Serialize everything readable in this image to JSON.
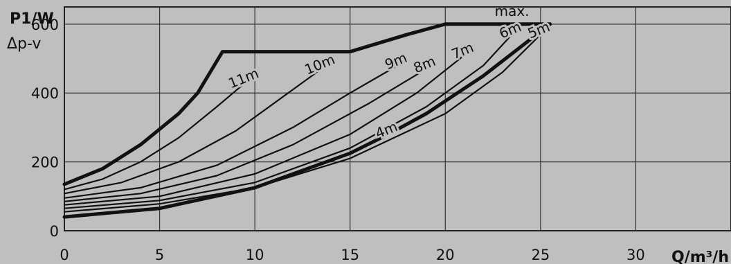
{
  "chart_data": {
    "type": "line",
    "ylabel": "P1/W",
    "ylabel_sub": "Δp-v",
    "xlabel": "Q/m³/h",
    "xlim": [
      0,
      35
    ],
    "ylim": [
      0,
      650
    ],
    "x_ticks": [
      0,
      5,
      10,
      15,
      20,
      25,
      30
    ],
    "y_ticks": [
      0,
      200,
      400,
      600
    ],
    "grid": true,
    "annotations": [
      "max."
    ],
    "series": [
      {
        "name": "max.",
        "bold": true,
        "points": [
          [
            0,
            135
          ],
          [
            2,
            180
          ],
          [
            4,
            250
          ],
          [
            6,
            340
          ],
          [
            7,
            400
          ],
          [
            8.3,
            520
          ],
          [
            15,
            520
          ],
          [
            18,
            570
          ],
          [
            20,
            600
          ],
          [
            25.5,
            600
          ]
        ]
      },
      {
        "name": "11m",
        "bold": false,
        "points": [
          [
            0,
            120
          ],
          [
            2,
            150
          ],
          [
            4,
            200
          ],
          [
            6,
            270
          ],
          [
            8,
            360
          ],
          [
            9.5,
            430
          ]
        ]
      },
      {
        "name": "10m",
        "bold": false,
        "points": [
          [
            0,
            108
          ],
          [
            3,
            140
          ],
          [
            6,
            200
          ],
          [
            9,
            290
          ],
          [
            11.5,
            390
          ],
          [
            13.5,
            470
          ]
        ]
      },
      {
        "name": "9m",
        "bold": false,
        "points": [
          [
            0,
            95
          ],
          [
            4,
            125
          ],
          [
            8,
            190
          ],
          [
            12,
            300
          ],
          [
            15,
            400
          ],
          [
            17.5,
            480
          ]
        ]
      },
      {
        "name": "8m",
        "bold": false,
        "points": [
          [
            0,
            85
          ],
          [
            4,
            108
          ],
          [
            8,
            160
          ],
          [
            12,
            250
          ],
          [
            16,
            370
          ],
          [
            19,
            470
          ]
        ]
      },
      {
        "name": "7m",
        "bold": false,
        "points": [
          [
            0,
            75
          ],
          [
            5,
            100
          ],
          [
            10,
            165
          ],
          [
            15,
            280
          ],
          [
            18.5,
            400
          ],
          [
            21,
            510
          ]
        ]
      },
      {
        "name": "6m",
        "bold": false,
        "points": [
          [
            0,
            65
          ],
          [
            5,
            88
          ],
          [
            10,
            140
          ],
          [
            15,
            240
          ],
          [
            19,
            360
          ],
          [
            22,
            480
          ],
          [
            23.5,
            570
          ]
        ]
      },
      {
        "name": "5m",
        "bold": false,
        "points": [
          [
            0,
            55
          ],
          [
            5,
            78
          ],
          [
            10,
            125
          ],
          [
            15,
            210
          ],
          [
            20,
            340
          ],
          [
            23,
            460
          ],
          [
            25,
            570
          ]
        ]
      },
      {
        "name": "4m",
        "bold": true,
        "points": [
          [
            0,
            40
          ],
          [
            5,
            65
          ],
          [
            10,
            125
          ],
          [
            15,
            225
          ],
          [
            17,
            280
          ],
          [
            19,
            340
          ],
          [
            22,
            450
          ],
          [
            25.5,
            600
          ]
        ]
      }
    ]
  }
}
